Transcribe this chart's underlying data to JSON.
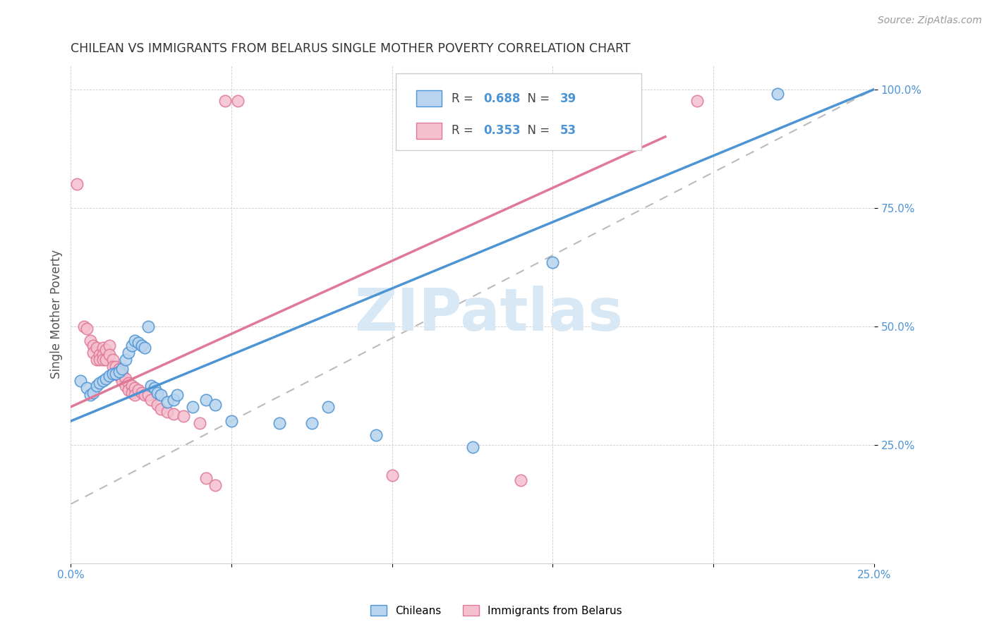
{
  "title": "CHILEAN VS IMMIGRANTS FROM BELARUS SINGLE MOTHER POVERTY CORRELATION CHART",
  "source": "Source: ZipAtlas.com",
  "ylabel": "Single Mother Poverty",
  "xlim": [
    0.0,
    0.25
  ],
  "ylim": [
    0.0,
    1.05
  ],
  "xticks": [
    0.0,
    0.05,
    0.1,
    0.15,
    0.2,
    0.25
  ],
  "yticks": [
    0.25,
    0.5,
    0.75,
    1.0
  ],
  "xticklabels": [
    "0.0%",
    "",
    "",
    "",
    "",
    "25.0%"
  ],
  "yticklabels": [
    "25.0%",
    "50.0%",
    "75.0%",
    "100.0%"
  ],
  "r_chilean": "0.688",
  "n_chilean": "39",
  "r_belarus": "0.353",
  "n_belarus": "53",
  "blue_color": "#4d94d4",
  "pink_color": "#e07898",
  "scatter_blue_face": "#b8d4ee",
  "scatter_blue_edge": "#4d94d4",
  "scatter_pink_face": "#f5c0d0",
  "scatter_pink_edge": "#e07898",
  "tick_color": "#4d94d4",
  "watermark_color": "#d8e8f4",
  "watermark": "ZIPatlas",
  "legend_label_blue": "Chileans",
  "legend_label_pink": "Immigrants from Belarus",
  "blue_points": [
    [
      0.003,
      0.385
    ],
    [
      0.005,
      0.37
    ],
    [
      0.006,
      0.355
    ],
    [
      0.007,
      0.36
    ],
    [
      0.008,
      0.375
    ],
    [
      0.009,
      0.38
    ],
    [
      0.01,
      0.385
    ],
    [
      0.011,
      0.39
    ],
    [
      0.012,
      0.395
    ],
    [
      0.013,
      0.4
    ],
    [
      0.014,
      0.4
    ],
    [
      0.015,
      0.405
    ],
    [
      0.016,
      0.41
    ],
    [
      0.017,
      0.43
    ],
    [
      0.018,
      0.445
    ],
    [
      0.019,
      0.46
    ],
    [
      0.02,
      0.47
    ],
    [
      0.021,
      0.465
    ],
    [
      0.022,
      0.46
    ],
    [
      0.023,
      0.455
    ],
    [
      0.024,
      0.5
    ],
    [
      0.025,
      0.375
    ],
    [
      0.026,
      0.37
    ],
    [
      0.027,
      0.36
    ],
    [
      0.028,
      0.355
    ],
    [
      0.03,
      0.34
    ],
    [
      0.032,
      0.345
    ],
    [
      0.033,
      0.355
    ],
    [
      0.038,
      0.33
    ],
    [
      0.042,
      0.345
    ],
    [
      0.045,
      0.335
    ],
    [
      0.05,
      0.3
    ],
    [
      0.065,
      0.295
    ],
    [
      0.075,
      0.295
    ],
    [
      0.08,
      0.33
    ],
    [
      0.095,
      0.27
    ],
    [
      0.125,
      0.245
    ],
    [
      0.15,
      0.635
    ],
    [
      0.22,
      0.99
    ]
  ],
  "pink_points": [
    [
      0.002,
      0.8
    ],
    [
      0.004,
      0.5
    ],
    [
      0.005,
      0.495
    ],
    [
      0.006,
      0.47
    ],
    [
      0.007,
      0.46
    ],
    [
      0.007,
      0.445
    ],
    [
      0.008,
      0.455
    ],
    [
      0.008,
      0.43
    ],
    [
      0.009,
      0.44
    ],
    [
      0.009,
      0.43
    ],
    [
      0.01,
      0.455
    ],
    [
      0.01,
      0.44
    ],
    [
      0.01,
      0.43
    ],
    [
      0.011,
      0.45
    ],
    [
      0.011,
      0.43
    ],
    [
      0.012,
      0.46
    ],
    [
      0.012,
      0.44
    ],
    [
      0.013,
      0.43
    ],
    [
      0.013,
      0.415
    ],
    [
      0.014,
      0.415
    ],
    [
      0.014,
      0.4
    ],
    [
      0.015,
      0.41
    ],
    [
      0.015,
      0.395
    ],
    [
      0.016,
      0.4
    ],
    [
      0.016,
      0.385
    ],
    [
      0.017,
      0.39
    ],
    [
      0.017,
      0.375
    ],
    [
      0.018,
      0.38
    ],
    [
      0.018,
      0.365
    ],
    [
      0.019,
      0.375
    ],
    [
      0.019,
      0.36
    ],
    [
      0.02,
      0.37
    ],
    [
      0.02,
      0.355
    ],
    [
      0.021,
      0.365
    ],
    [
      0.022,
      0.36
    ],
    [
      0.023,
      0.355
    ],
    [
      0.024,
      0.355
    ],
    [
      0.025,
      0.345
    ],
    [
      0.027,
      0.335
    ],
    [
      0.028,
      0.325
    ],
    [
      0.03,
      0.32
    ],
    [
      0.032,
      0.315
    ],
    [
      0.035,
      0.31
    ],
    [
      0.04,
      0.295
    ],
    [
      0.042,
      0.18
    ],
    [
      0.045,
      0.165
    ],
    [
      0.048,
      0.975
    ],
    [
      0.052,
      0.975
    ],
    [
      0.1,
      0.185
    ],
    [
      0.14,
      0.175
    ],
    [
      0.145,
      0.975
    ],
    [
      0.16,
      0.975
    ],
    [
      0.195,
      0.975
    ]
  ],
  "blue_line": [
    [
      0.0,
      0.3
    ],
    [
      0.25,
      1.0
    ]
  ],
  "pink_line": [
    [
      0.0,
      0.33
    ],
    [
      0.185,
      0.9
    ]
  ],
  "ref_line": [
    [
      0.0,
      0.125
    ],
    [
      0.25,
      1.0
    ]
  ]
}
